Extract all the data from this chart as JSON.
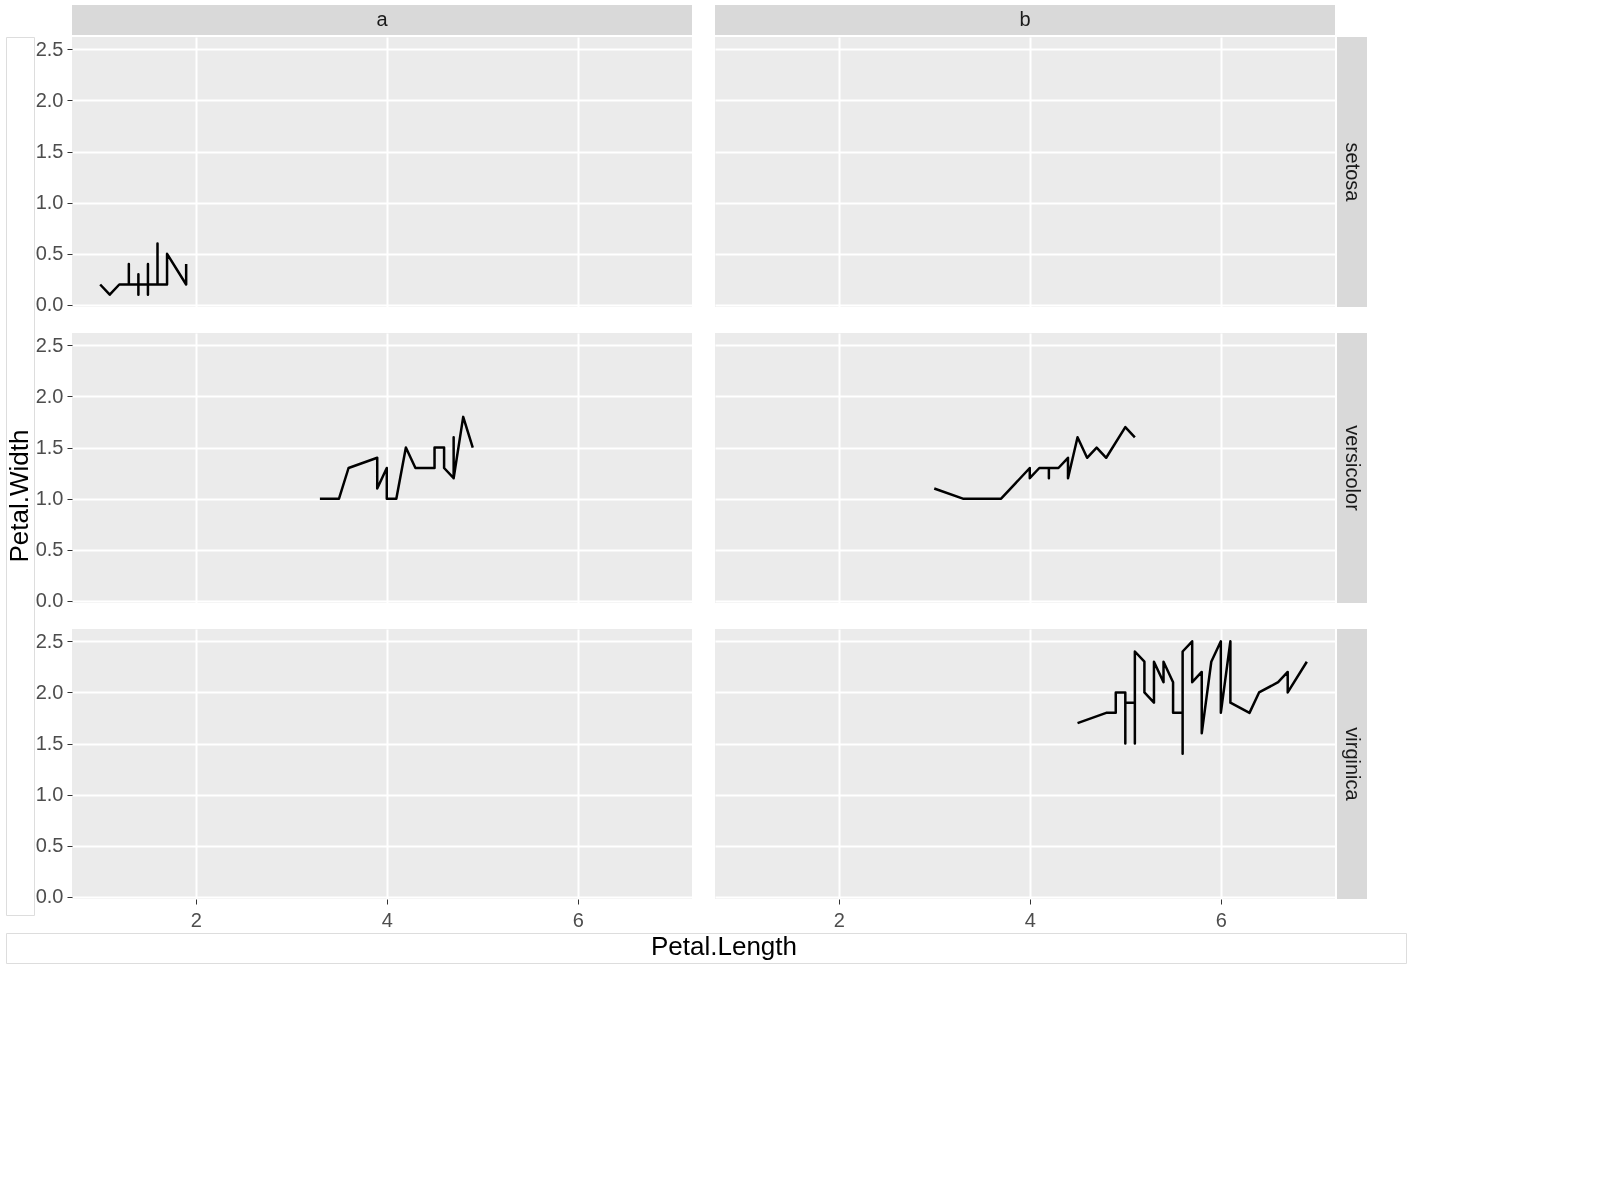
{
  "chart_data": [
    {
      "type": "line",
      "title": "a",
      "xlim": [
        0.705,
        7.195
      ],
      "ylim": [
        -0.02,
        2.62
      ],
      "xticks": [
        2,
        4,
        6
      ],
      "yticks": [
        {
          "value": 0,
          "label": "0.0"
        },
        0.5,
        {
          "value": 1,
          "label": "1.0"
        },
        1.5,
        {
          "value": 2,
          "label": "2.0"
        },
        2.5
      ],
      "grid": true,
      "tick_labels": "y",
      "series": [
        {
          "color": "#000000",
          "x": [
            1.0,
            1.1,
            1.2,
            1.3,
            1.3,
            1.3,
            1.4,
            1.4,
            1.4,
            1.4,
            1.5,
            1.5,
            1.5,
            1.5,
            1.6,
            1.6,
            1.6,
            1.7,
            1.7,
            1.9,
            1.9
          ],
          "values": [
            0.2,
            0.1,
            0.2,
            0.2,
            0.4,
            0.2,
            0.2,
            0.1,
            0.3,
            0.2,
            0.2,
            0.1,
            0.4,
            0.2,
            0.2,
            0.6,
            0.2,
            0.2,
            0.5,
            0.2,
            0.4
          ]
        }
      ]
    },
    {
      "type": "line",
      "title": "b",
      "y2label": "setosa",
      "xlim": [
        0.705,
        7.195
      ],
      "ylim": [
        -0.02,
        2.62
      ],
      "xticks": [
        2,
        4,
        6
      ],
      "yticks": [
        0,
        0.5,
        1,
        1.5,
        2,
        2.5
      ],
      "grid": true,
      "tick_labels": false
    },
    {
      "type": "line",
      "ylabel": "Petal.Width",
      "xlim": [
        0.705,
        7.195
      ],
      "ylim": [
        -0.02,
        2.62
      ],
      "xticks": [
        2,
        4,
        6
      ],
      "yticks": [
        {
          "value": 0,
          "label": "0.0"
        },
        0.5,
        {
          "value": 1,
          "label": "1.0"
        },
        1.5,
        {
          "value": 2,
          "label": "2.0"
        },
        2.5
      ],
      "grid": true,
      "tick_labels": "y",
      "series": [
        {
          "color": "#000000",
          "x": [
            3.3,
            3.5,
            3.6,
            3.9,
            3.9,
            4.0,
            4.0,
            4.1,
            4.2,
            4.3,
            4.5,
            4.5,
            4.6,
            4.6,
            4.7,
            4.7,
            4.7,
            4.8,
            4.9
          ],
          "values": [
            1.0,
            1.0,
            1.3,
            1.4,
            1.1,
            1.3,
            1.0,
            1.0,
            1.5,
            1.3,
            1.3,
            1.5,
            1.5,
            1.3,
            1.2,
            1.6,
            1.2,
            1.8,
            1.5
          ]
        }
      ]
    },
    {
      "type": "line",
      "y2label": "versicolor",
      "xlim": [
        0.705,
        7.195
      ],
      "ylim": [
        -0.02,
        2.62
      ],
      "xticks": [
        2,
        4,
        6
      ],
      "yticks": [
        0,
        0.5,
        1,
        1.5,
        2,
        2.5
      ],
      "grid": true,
      "tick_labels": false,
      "series": [
        {
          "color": "#000000",
          "x": [
            3.0,
            3.3,
            3.7,
            4.0,
            4.0,
            4.1,
            4.2,
            4.2,
            4.2,
            4.3,
            4.4,
            4.4,
            4.5,
            4.6,
            4.7,
            4.8,
            5.0,
            5.1
          ],
          "values": [
            1.1,
            1.0,
            1.0,
            1.3,
            1.2,
            1.3,
            1.3,
            1.2,
            1.3,
            1.3,
            1.4,
            1.2,
            1.6,
            1.4,
            1.5,
            1.4,
            1.7,
            1.6
          ]
        }
      ]
    },
    {
      "type": "line",
      "xlabel": "Petal.Length",
      "xlim": [
        0.705,
        7.195
      ],
      "ylim": [
        -0.02,
        2.62
      ],
      "xticks": [
        2,
        4,
        6
      ],
      "yticks": [
        {
          "value": 0,
          "label": "0.0"
        },
        0.5,
        {
          "value": 1,
          "label": "1.0"
        },
        1.5,
        {
          "value": 2,
          "label": "2.0"
        },
        2.5
      ],
      "grid": true
    },
    {
      "type": "line",
      "y2label": "virginica",
      "xlim": [
        0.705,
        7.195
      ],
      "ylim": [
        -0.02,
        2.62
      ],
      "xticks": [
        2,
        4,
        6
      ],
      "yticks": [
        0,
        0.5,
        1,
        1.5,
        2,
        2.5
      ],
      "grid": true,
      "tick_labels": "x",
      "series": [
        {
          "color": "#000000",
          "x": [
            4.5,
            4.8,
            4.9,
            4.9,
            5.0,
            5.0,
            5.0,
            5.1,
            5.1,
            5.1,
            5.2,
            5.2,
            5.3,
            5.3,
            5.4,
            5.4,
            5.5,
            5.5,
            5.6,
            5.6,
            5.6,
            5.7,
            5.7,
            5.8,
            5.8,
            5.9,
            6.0,
            6.0,
            6.1,
            6.1,
            6.3,
            6.4,
            6.6,
            6.7,
            6.7,
            6.9
          ],
          "values": [
            1.7,
            1.8,
            1.8,
            2.0,
            2.0,
            1.5,
            1.9,
            1.9,
            1.5,
            2.4,
            2.3,
            2.0,
            1.9,
            2.3,
            2.1,
            2.3,
            2.1,
            1.8,
            1.8,
            1.4,
            2.4,
            2.5,
            2.1,
            2.2,
            1.6,
            2.3,
            2.5,
            1.8,
            2.5,
            1.9,
            1.8,
            2.0,
            2.1,
            2.2,
            2.0,
            2.3
          ]
        }
      ]
    }
  ]
}
